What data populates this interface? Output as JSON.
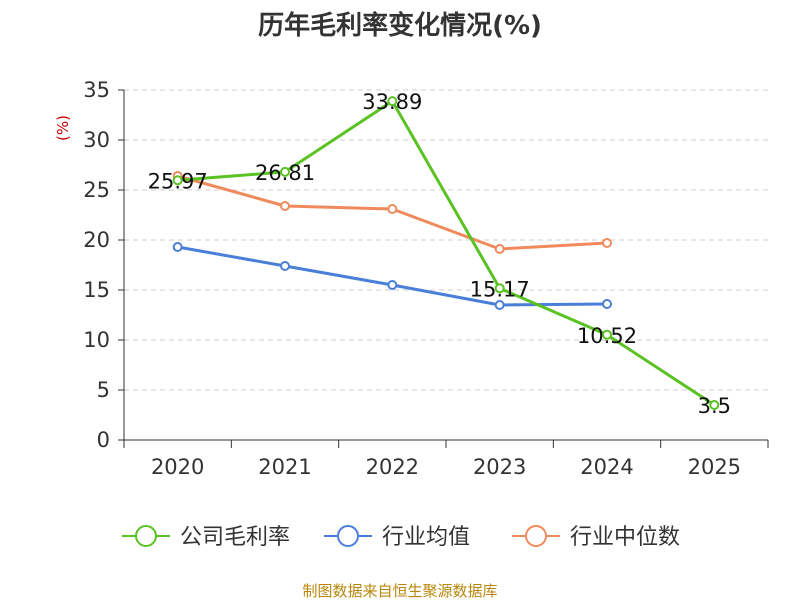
{
  "chart_data": {
    "type": "line",
    "title": "历年毛利率变化情况(%)",
    "ylabel": "(%)",
    "xlabel": "",
    "categories": [
      "2020",
      "2021",
      "2022",
      "2023",
      "2024",
      "2025"
    ],
    "ylim": [
      0,
      35
    ],
    "yticks": [
      0,
      5,
      10,
      15,
      20,
      25,
      30,
      35
    ],
    "grid": "horizontal-dashed",
    "series": [
      {
        "name": "公司毛利率",
        "color": "#5ac223",
        "values": [
          25.97,
          26.81,
          33.89,
          15.17,
          10.52,
          3.5
        ],
        "labels": [
          "25.97",
          "26.81",
          "33.89",
          "15.17",
          "10.52",
          "3.5"
        ]
      },
      {
        "name": "行业均值",
        "color": "#4a7fd8",
        "values": [
          19.3,
          17.4,
          15.5,
          13.5,
          13.6,
          null
        ]
      },
      {
        "name": "行业中位数",
        "color": "#f08a5d",
        "values": [
          26.4,
          23.4,
          23.1,
          19.1,
          19.7,
          null
        ]
      }
    ],
    "legend_position": "bottom",
    "source": "制图数据来自恒生聚源数据库"
  }
}
